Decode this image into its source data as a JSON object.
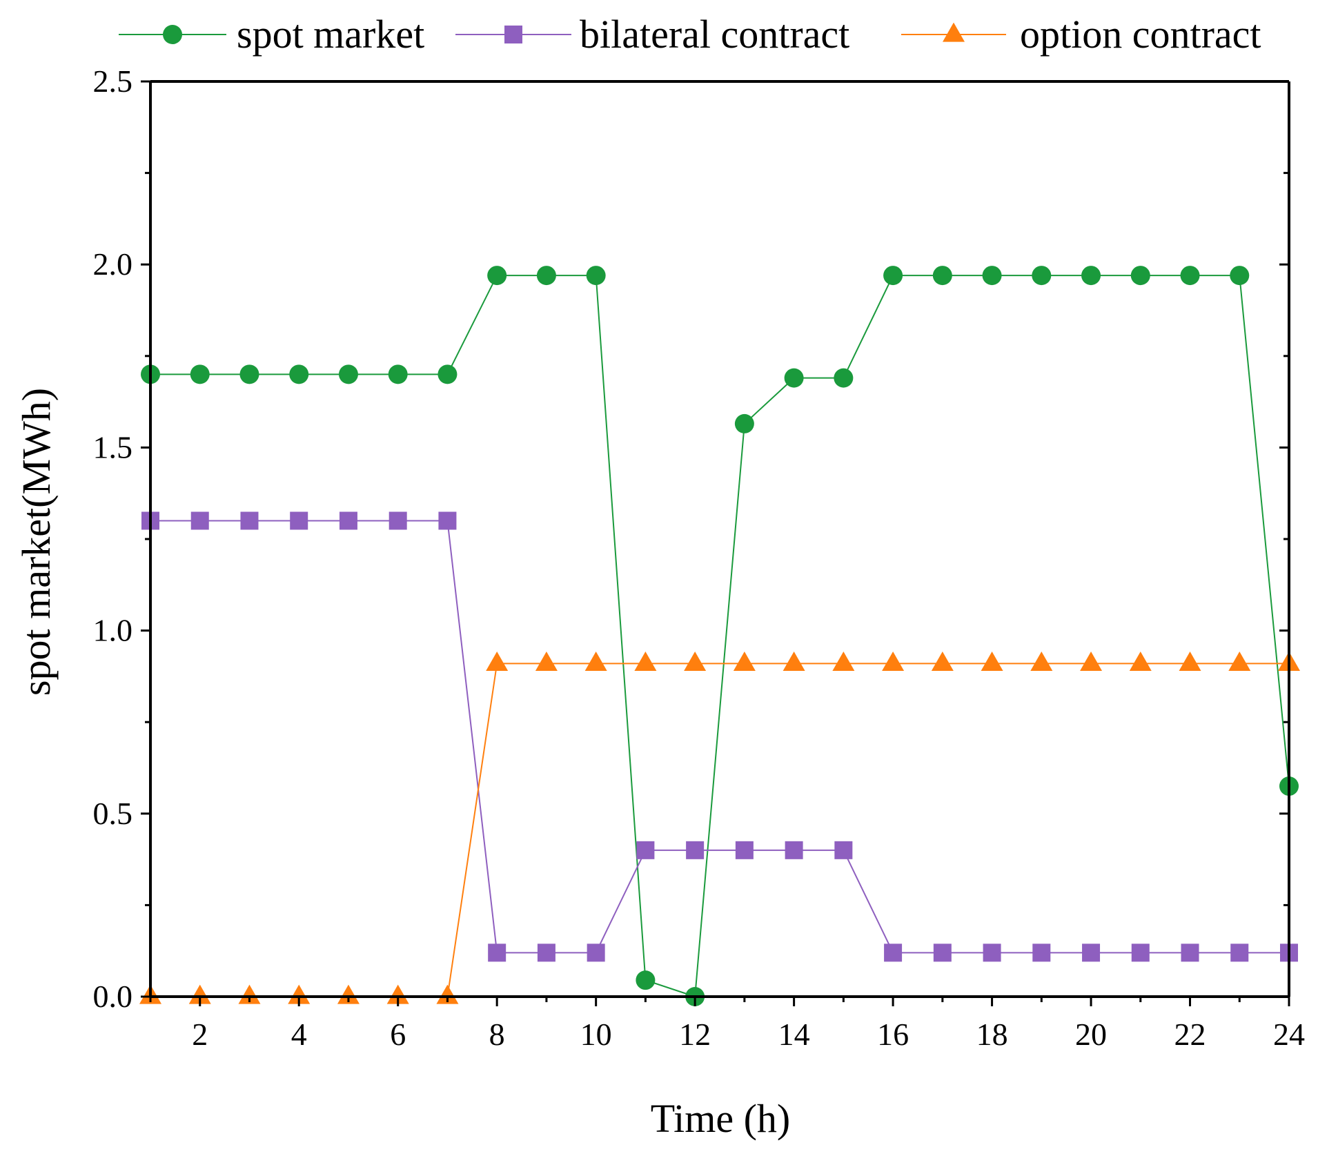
{
  "chart_data": {
    "type": "line",
    "title": "",
    "xlabel": "Time (h)",
    "ylabel": "spot market(MWh)",
    "xlim": [
      1,
      24
    ],
    "ylim": [
      0,
      2.5
    ],
    "x_ticks": [
      2,
      4,
      6,
      8,
      10,
      12,
      14,
      16,
      18,
      20,
      22,
      24
    ],
    "y_ticks": [
      0.0,
      0.5,
      1.0,
      1.5,
      2.0,
      2.5
    ],
    "y_tick_labels": [
      "0.0",
      "0.5",
      "1.0",
      "1.5",
      "2.0",
      "2.5"
    ],
    "legend_position": "top",
    "x": [
      1,
      2,
      3,
      4,
      5,
      6,
      7,
      8,
      9,
      10,
      11,
      12,
      13,
      14,
      15,
      16,
      17,
      18,
      19,
      20,
      21,
      22,
      23,
      24
    ],
    "series": [
      {
        "name": "spot market",
        "color": "#1a9a3c",
        "marker": "circle",
        "values": [
          1.7,
          1.7,
          1.7,
          1.7,
          1.7,
          1.7,
          1.7,
          1.97,
          1.97,
          1.97,
          0.045,
          0.0,
          1.565,
          1.69,
          1.69,
          1.97,
          1.97,
          1.97,
          1.97,
          1.97,
          1.97,
          1.97,
          1.97,
          0.575
        ]
      },
      {
        "name": "bilateral contract",
        "color": "#8e5fbf",
        "marker": "square",
        "values": [
          1.3,
          1.3,
          1.3,
          1.3,
          1.3,
          1.3,
          1.3,
          0.12,
          0.12,
          0.12,
          0.4,
          0.4,
          0.4,
          0.4,
          0.4,
          0.12,
          0.12,
          0.12,
          0.12,
          0.12,
          0.12,
          0.12,
          0.12,
          0.12
        ]
      },
      {
        "name": "option contract",
        "color": "#ff7f0e",
        "marker": "triangle",
        "values": [
          0.0,
          0.0,
          0.0,
          0.0,
          0.0,
          0.0,
          0.0,
          0.91,
          0.91,
          0.91,
          0.91,
          0.91,
          0.91,
          0.91,
          0.91,
          0.91,
          0.91,
          0.91,
          0.91,
          0.91,
          0.91,
          0.91,
          0.91,
          0.91
        ]
      }
    ]
  }
}
